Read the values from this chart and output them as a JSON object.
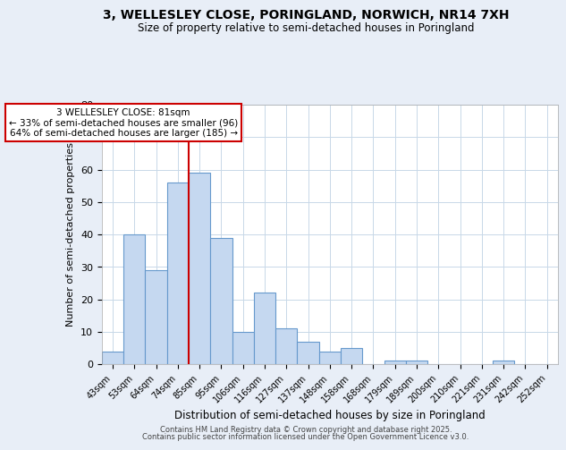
{
  "title_line1": "3, WELLESLEY CLOSE, PORINGLAND, NORWICH, NR14 7XH",
  "title_line2": "Size of property relative to semi-detached houses in Poringland",
  "xlabel": "Distribution of semi-detached houses by size in Poringland",
  "ylabel": "Number of semi-detached properties",
  "bins": [
    "43sqm",
    "53sqm",
    "64sqm",
    "74sqm",
    "85sqm",
    "95sqm",
    "106sqm",
    "116sqm",
    "127sqm",
    "137sqm",
    "148sqm",
    "158sqm",
    "168sqm",
    "179sqm",
    "189sqm",
    "200sqm",
    "210sqm",
    "221sqm",
    "231sqm",
    "242sqm",
    "252sqm"
  ],
  "values": [
    4,
    40,
    29,
    56,
    59,
    39,
    10,
    22,
    11,
    7,
    4,
    5,
    0,
    1,
    1,
    0,
    0,
    0,
    1,
    0,
    0
  ],
  "bar_color": "#c5d8f0",
  "bar_edge_color": "#6699cc",
  "vline_x": 3.5,
  "annotation_title": "3 WELLESLEY CLOSE: 81sqm",
  "annotation_line1": "← 33% of semi-detached houses are smaller (96)",
  "annotation_line2": "64% of semi-detached houses are larger (185) →",
  "annotation_box_color": "#cc0000",
  "vline_color": "#cc0000",
  "footer1": "Contains HM Land Registry data © Crown copyright and database right 2025.",
  "footer2": "Contains public sector information licensed under the Open Government Licence v3.0.",
  "ylim": [
    0,
    80
  ],
  "background_color": "#e8eef7",
  "plot_bg_color": "#ffffff"
}
